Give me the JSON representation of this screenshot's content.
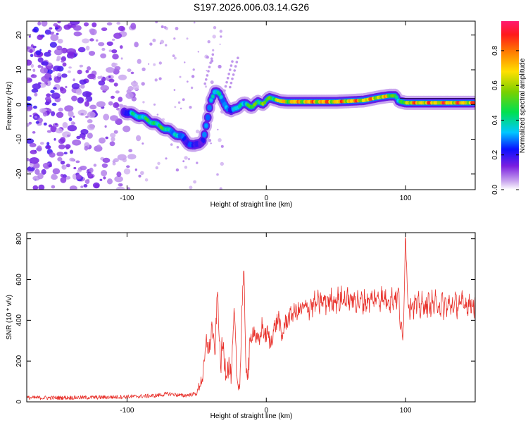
{
  "figure": {
    "title": "S197.2026.006.03.14.G26"
  },
  "chart_data": [
    {
      "type": "heatmap",
      "title": "S197.2026.006.03.14.G26",
      "xlabel": "Height of straight line (km)",
      "ylabel": "Frequency (Hz)",
      "xlim": [
        -172,
        150
      ],
      "ylim": [
        -24.5,
        24
      ],
      "xticks": [
        -100,
        0,
        100
      ],
      "xtick_labels": [
        "-100",
        "0",
        "100"
      ],
      "yticks": [
        -20,
        -10,
        0,
        10,
        20
      ],
      "ytick_labels": [
        "-20",
        "-10",
        "0",
        "10",
        "20"
      ],
      "colorbar": {
        "label": "Normalized spectral amplitude",
        "range": [
          0.0,
          0.97
        ],
        "ticks": [
          0.0,
          0.2,
          0.4,
          0.6,
          0.8
        ],
        "tick_labels": [
          "0.0",
          "0.2",
          "0.4",
          "0.6",
          "0.8"
        ],
        "colormap": "rainbow (white-violet-blue-cyan-green-yellow-red-magenta)"
      },
      "ridge": {
        "description": "dominant frequency trace",
        "x": [
          -102,
          -95,
          -90,
          -85,
          -80,
          -75,
          -70,
          -65,
          -60,
          -56,
          -52,
          -48,
          -45,
          -42,
          -40,
          -37,
          -34,
          -31,
          -28,
          -25,
          -22,
          -18,
          -14,
          -10,
          -6,
          -2,
          2,
          6,
          10,
          15,
          20,
          30,
          40,
          50,
          60,
          70,
          80,
          88,
          93,
          95,
          100,
          110,
          120,
          130,
          140,
          150
        ],
        "y": [
          -2,
          -3,
          -3.5,
          -4.5,
          -5.5,
          -6.5,
          -7.5,
          -8.5,
          -9.5,
          -11,
          -12,
          -11,
          -10,
          -4,
          1,
          4,
          3,
          1,
          -1,
          -2,
          -1,
          0,
          0,
          -0.5,
          0.5,
          0.5,
          2,
          1.5,
          1,
          0.8,
          0.8,
          0.8,
          0.8,
          0.8,
          1,
          1.2,
          2,
          2.5,
          2.5,
          1,
          0.5,
          0.5,
          0.5,
          0.5,
          0.5,
          0.5
        ],
        "amplitude": [
          0.25,
          0.45,
          0.55,
          0.5,
          0.6,
          0.55,
          0.5,
          0.4,
          0.35,
          0.3,
          0.25,
          0.25,
          0.3,
          0.35,
          0.4,
          0.6,
          0.45,
          0.35,
          0.4,
          0.35,
          0.4,
          0.5,
          0.55,
          0.6,
          0.7,
          0.65,
          0.6,
          0.75,
          0.8,
          0.85,
          0.85,
          0.9,
          0.92,
          0.9,
          0.92,
          0.88,
          0.85,
          0.75,
          0.7,
          0.35,
          0.85,
          0.9,
          0.92,
          0.92,
          0.92,
          0.9
        ]
      },
      "noise_region_x": [
        -172,
        -90
      ]
    },
    {
      "type": "line",
      "xlabel": "Height of straight line (km)",
      "ylabel": "SNR (10 * v/v)",
      "xlim": [
        -172,
        150
      ],
      "ylim": [
        0,
        830
      ],
      "xticks": [
        -100,
        0,
        100
      ],
      "xtick_labels": [
        "-100",
        "0",
        "100"
      ],
      "yticks": [
        0,
        200,
        400,
        600,
        800
      ],
      "ytick_labels": [
        "0",
        "200",
        "400",
        "600",
        "800"
      ],
      "color": "#e8302a",
      "series": [
        {
          "name": "SNR",
          "x": [
            -172,
            -150,
            -120,
            -100,
            -80,
            -70,
            -60,
            -50,
            -45,
            -43,
            -41,
            -39,
            -37,
            -35,
            -33,
            -31,
            -29,
            -27,
            -25,
            -23,
            -21,
            -19,
            -17,
            -16,
            -15,
            -13,
            -11,
            -9,
            -7,
            -5,
            -3,
            -1,
            1,
            3,
            5,
            7,
            9,
            11,
            13,
            15,
            17,
            20,
            25,
            30,
            40,
            50,
            60,
            70,
            80,
            90,
            95,
            97,
            98,
            99,
            100,
            101,
            102,
            104,
            110,
            120,
            130,
            140,
            150
          ],
          "y": [
            20,
            20,
            22,
            25,
            30,
            40,
            30,
            40,
            140,
            300,
            240,
            380,
            220,
            550,
            180,
            280,
            150,
            180,
            120,
            450,
            100,
            80,
            560,
            640,
            200,
            140,
            320,
            360,
            300,
            290,
            380,
            320,
            340,
            280,
            350,
            380,
            420,
            300,
            380,
            400,
            420,
            440,
            450,
            470,
            490,
            500,
            500,
            490,
            510,
            500,
            520,
            330,
            300,
            540,
            830,
            620,
            460,
            480,
            470,
            480,
            470,
            480,
            480
          ]
        }
      ]
    }
  ]
}
